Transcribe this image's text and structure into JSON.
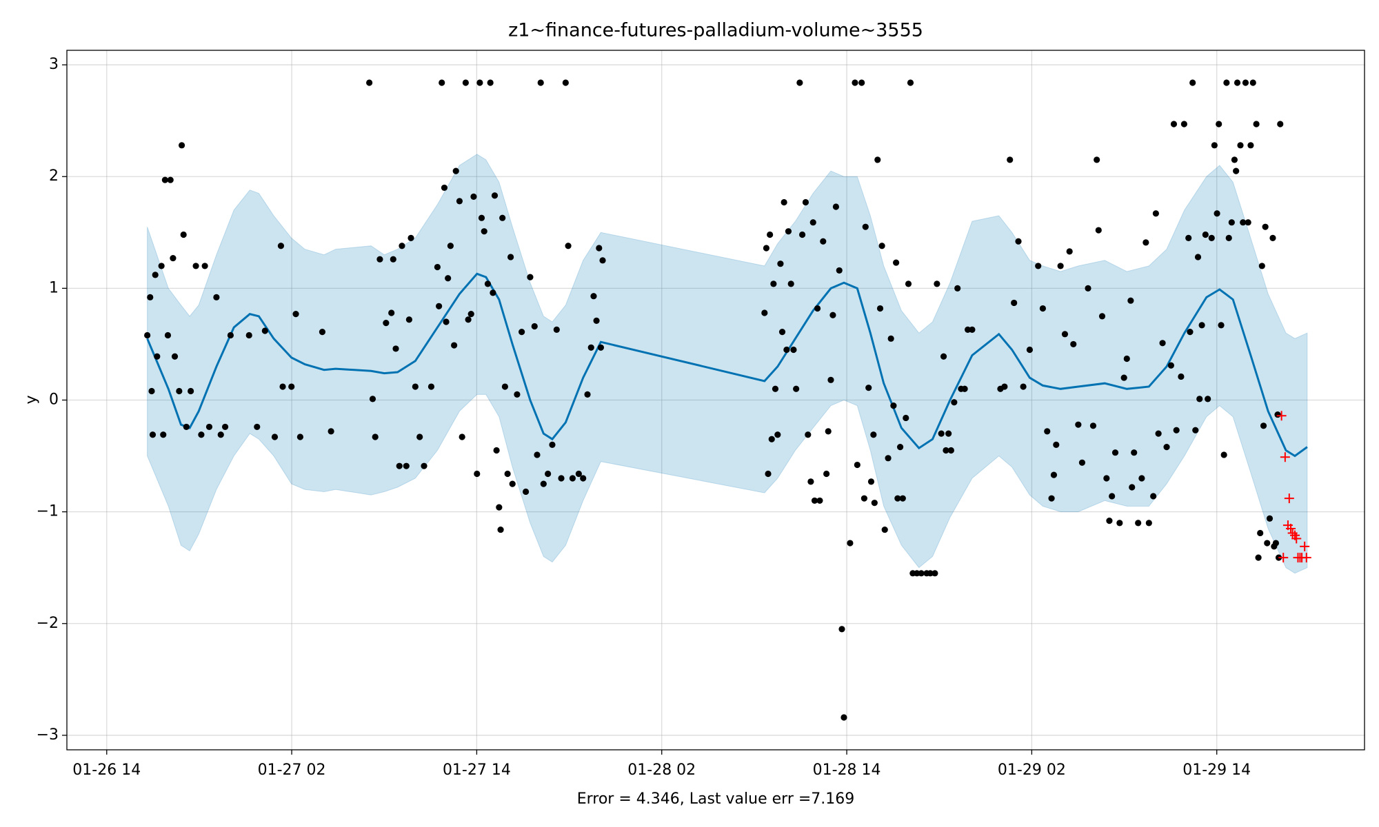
{
  "chart_data": {
    "type": "line",
    "title": "z1~finance-futures-palladium-volume~3555",
    "ylabel": "y",
    "xlabel": "Error = 4.346, Last value err =7.169",
    "grid": true,
    "xlim": [
      "01-26 11:25",
      "01-29 23:35"
    ],
    "xticks": [
      "01-26 14",
      "01-27 02",
      "01-27 14",
      "01-28 02",
      "01-28 14",
      "01-29 02",
      "01-29 14"
    ],
    "ylim": [
      -3.13,
      3.13
    ],
    "yticks": [
      {
        "value": -3,
        "label": "−3"
      },
      {
        "value": -2,
        "label": "−2"
      },
      {
        "value": -1,
        "label": "−1"
      },
      0,
      1,
      2,
      3
    ],
    "series": [
      {
        "type": "forecast",
        "color": "#0072b2",
        "band_color": "#0072b2",
        "x": [
          "01-26 16:38",
          "01-26 18:00",
          "01-26 18:49",
          "01-26 19:23",
          "01-26 19:58",
          "01-26 21:07",
          "01-26 22:15",
          "01-26 23:17",
          "01-26 23:52",
          "01-27 00:50",
          "01-27 01:59",
          "01-27 02:51",
          "01-27 04:06",
          "01-27 04:51",
          "01-27 07:09",
          "01-27 08:00",
          "01-27 08:52",
          "01-27 10:01",
          "01-27 11:27",
          "01-27 12:53",
          "01-27 14:01",
          "01-27 14:36",
          "01-27 15:27",
          "01-27 16:19",
          "01-27 17:28",
          "01-27 18:20",
          "01-27 18:54",
          "01-27 19:46",
          "01-27 20:54",
          "01-27 22:03",
          "01-28 08:40",
          "01-28 09:31",
          "01-28 10:40",
          "01-28 11:49",
          "01-28 12:58",
          "01-28 13:49",
          "01-28 14:41",
          "01-28 15:32",
          "01-28 16:24",
          "01-28 17:33",
          "01-28 18:41",
          "01-28 19:34",
          "01-28 20:42",
          "01-28 22:08",
          "01-28 23:52",
          "01-29 00:43",
          "01-29 01:52",
          "01-29 02:43",
          "01-29 03:52",
          "01-29 05:01",
          "01-29 06:44",
          "01-29 08:10",
          "01-29 09:36",
          "01-29 10:45",
          "01-29 11:54",
          "01-29 13:20",
          "01-29 14:11",
          "01-29 15:03",
          "01-29 16:12",
          "01-29 17:20",
          "01-29 18:29",
          "01-29 19:04",
          "01-29 19:52"
        ],
        "values": [
          0.55,
          0.1,
          -0.22,
          -0.25,
          -0.1,
          0.3,
          0.65,
          0.77,
          0.75,
          0.55,
          0.38,
          0.32,
          0.27,
          0.28,
          0.26,
          0.24,
          0.25,
          0.35,
          0.65,
          0.95,
          1.13,
          1.1,
          0.9,
          0.5,
          0.0,
          -0.3,
          -0.35,
          -0.2,
          0.2,
          0.52,
          0.17,
          0.3,
          0.55,
          0.8,
          1.0,
          1.05,
          1.0,
          0.6,
          0.15,
          -0.25,
          -0.43,
          -0.35,
          0.0,
          0.4,
          0.59,
          0.45,
          0.2,
          0.13,
          0.1,
          0.12,
          0.15,
          0.1,
          0.12,
          0.3,
          0.6,
          0.92,
          0.99,
          0.9,
          0.4,
          -0.1,
          -0.45,
          -0.5,
          -0.42
        ],
        "upper": [
          1.55,
          1.0,
          0.85,
          0.75,
          0.85,
          1.3,
          1.7,
          1.88,
          1.85,
          1.65,
          1.45,
          1.35,
          1.3,
          1.35,
          1.38,
          1.3,
          1.35,
          1.45,
          1.75,
          2.1,
          2.2,
          2.15,
          1.95,
          1.55,
          1.05,
          0.75,
          0.7,
          0.85,
          1.25,
          1.5,
          1.2,
          1.4,
          1.6,
          1.85,
          2.05,
          2.0,
          2.0,
          1.65,
          1.2,
          0.8,
          0.6,
          0.7,
          1.05,
          1.6,
          1.65,
          1.5,
          1.25,
          1.2,
          1.15,
          1.2,
          1.25,
          1.15,
          1.2,
          1.35,
          1.7,
          2.0,
          2.1,
          1.95,
          1.45,
          0.95,
          0.6,
          0.55,
          0.6
        ],
        "lower": [
          -0.5,
          -0.95,
          -1.3,
          -1.35,
          -1.2,
          -0.8,
          -0.5,
          -0.3,
          -0.35,
          -0.5,
          -0.75,
          -0.8,
          -0.82,
          -0.8,
          -0.85,
          -0.82,
          -0.78,
          -0.7,
          -0.45,
          -0.1,
          0.05,
          0.05,
          -0.15,
          -0.6,
          -1.1,
          -1.4,
          -1.45,
          -1.3,
          -0.9,
          -0.55,
          -0.83,
          -0.7,
          -0.45,
          -0.25,
          -0.05,
          0.0,
          -0.05,
          -0.45,
          -0.95,
          -1.3,
          -1.5,
          -1.4,
          -1.05,
          -0.7,
          -0.5,
          -0.6,
          -0.85,
          -0.95,
          -1.0,
          -1.0,
          -0.9,
          -0.95,
          -0.95,
          -0.75,
          -0.5,
          -0.15,
          -0.05,
          -0.15,
          -0.65,
          -1.15,
          -1.5,
          -1.55,
          -1.5
        ]
      },
      {
        "type": "scatter",
        "marker": "o",
        "color": "#000000",
        "x": [
          "01-26 16:38",
          "01-26 16:49",
          "01-26 16:55",
          "01-26 16:59",
          "01-26 17:09",
          "01-26 17:16",
          "01-26 17:33",
          "01-26 17:40",
          "01-26 17:47",
          "01-26 17:58",
          "01-26 18:08",
          "01-26 18:18",
          "01-26 18:25",
          "01-26 18:42",
          "01-26 18:52",
          "01-26 18:59",
          "01-26 19:10",
          "01-26 19:27",
          "01-26 19:47",
          "01-26 20:08",
          "01-26 20:22",
          "01-26 20:39",
          "01-26 21:07",
          "01-26 21:24",
          "01-26 21:41",
          "01-26 22:02",
          "01-26 23:14",
          "01-26 23:45",
          "01-27 00:16",
          "01-27 00:54",
          "01-27 01:18",
          "01-27 01:25",
          "01-27 01:59",
          "01-27 02:16",
          "01-27 02:33",
          "01-27 03:59",
          "01-27 04:33",
          "01-27 07:02",
          "01-27 07:15",
          "01-27 07:25",
          "01-27 07:43",
          "01-27 08:07",
          "01-27 08:28",
          "01-27 08:35",
          "01-27 08:45",
          "01-27 08:59",
          "01-27 09:09",
          "01-27 09:26",
          "01-27 09:37",
          "01-27 09:44",
          "01-27 10:01",
          "01-27 10:18",
          "01-27 10:35",
          "01-27 11:03",
          "01-27 11:27",
          "01-27 11:33",
          "01-27 11:44",
          "01-27 11:54",
          "01-27 12:01",
          "01-27 12:08",
          "01-27 12:18",
          "01-27 12:32",
          "01-27 12:39",
          "01-27 12:53",
          "01-27 13:03",
          "01-27 13:17",
          "01-27 13:27",
          "01-27 13:38",
          "01-27 13:48",
          "01-27 14:01",
          "01-27 14:12",
          "01-27 14:19",
          "01-27 14:29",
          "01-27 14:43",
          "01-27 14:53",
          "01-27 15:03",
          "01-27 15:10",
          "01-27 15:17",
          "01-27 15:27",
          "01-27 15:33",
          "01-27 15:40",
          "01-27 15:50",
          "01-27 16:00",
          "01-27 16:12",
          "01-27 16:19",
          "01-27 16:37",
          "01-27 16:55",
          "01-27 17:11",
          "01-27 17:28",
          "01-27 17:45",
          "01-27 17:55",
          "01-27 18:09",
          "01-27 18:20",
          "01-27 18:37",
          "01-27 18:54",
          "01-27 19:11",
          "01-27 19:29",
          "01-27 19:46",
          "01-27 19:56",
          "01-27 20:13",
          "01-27 20:37",
          "01-27 20:54",
          "01-27 21:11",
          "01-27 21:25",
          "01-27 21:35",
          "01-27 21:46",
          "01-27 21:56",
          "01-27 22:03",
          "01-27 22:10",
          "01-28 08:40",
          "01-28 08:47",
          "01-28 08:54",
          "01-28 09:01",
          "01-28 09:08",
          "01-28 09:15",
          "01-28 09:22",
          "01-28 09:31",
          "01-28 09:42",
          "01-28 09:49",
          "01-28 09:56",
          "01-28 10:06",
          "01-28 10:13",
          "01-28 10:23",
          "01-28 10:33",
          "01-28 10:43",
          "01-28 10:57",
          "01-28 11:07",
          "01-28 11:20",
          "01-28 11:29",
          "01-28 11:40",
          "01-28 11:49",
          "01-28 11:55",
          "01-28 12:06",
          "01-28 12:15",
          "01-28 12:28",
          "01-28 12:41",
          "01-28 12:48",
          "01-28 12:58",
          "01-28 13:06",
          "01-28 13:18",
          "01-28 13:31",
          "01-28 13:41",
          "01-28 13:49",
          "01-28 14:13",
          "01-28 14:32",
          "01-28 14:41",
          "01-28 14:58",
          "01-28 15:08",
          "01-28 15:13",
          "01-28 15:25",
          "01-28 15:35",
          "01-28 15:44",
          "01-28 15:48",
          "01-28 16:00",
          "01-28 16:10",
          "01-28 16:17",
          "01-28 16:28",
          "01-28 16:41",
          "01-28 16:52",
          "01-28 17:02",
          "01-28 17:12",
          "01-28 17:18",
          "01-28 17:28",
          "01-28 17:38",
          "01-28 17:50",
          "01-28 18:00",
          "01-28 18:08",
          "01-28 18:17",
          "01-28 18:33",
          "01-28 18:50",
          "01-28 19:11",
          "01-28 19:25",
          "01-28 19:43",
          "01-28 19:51",
          "01-28 20:08",
          "01-28 20:17",
          "01-28 20:26",
          "01-28 20:36",
          "01-28 20:46",
          "01-28 20:58",
          "01-28 21:11",
          "01-28 21:25",
          "01-28 21:39",
          "01-28 21:51",
          "01-28 22:08",
          "01-28 23:58",
          "01-29 00:14",
          "01-29 00:35",
          "01-29 00:51",
          "01-29 01:08",
          "01-29 01:27",
          "01-29 01:52",
          "01-29 02:25",
          "01-29 02:43",
          "01-29 03:00",
          "01-29 03:17",
          "01-29 03:26",
          "01-29 03:35",
          "01-29 03:52",
          "01-29 04:09",
          "01-29 04:27",
          "01-29 04:42",
          "01-29 05:01",
          "01-29 05:16",
          "01-29 05:39",
          "01-29 05:59",
          "01-29 06:13",
          "01-29 06:20",
          "01-29 06:34",
          "01-29 06:51",
          "01-29 07:02",
          "01-29 07:12",
          "01-29 07:25",
          "01-29 07:42",
          "01-29 07:59",
          "01-29 08:10",
          "01-29 08:25",
          "01-29 08:30",
          "01-29 08:38",
          "01-29 08:54",
          "01-29 09:08",
          "01-29 09:24",
          "01-29 09:36",
          "01-29 09:53",
          "01-29 10:03",
          "01-29 10:13",
          "01-29 10:29",
          "01-29 10:45",
          "01-29 11:02",
          "01-29 11:13",
          "01-29 11:23",
          "01-29 11:41",
          "01-29 11:53",
          "01-29 12:10",
          "01-29 12:16",
          "01-29 12:26",
          "01-29 12:37",
          "01-29 12:47",
          "01-29 12:53",
          "01-29 13:02",
          "01-29 13:16",
          "01-29 13:25",
          "01-29 13:40",
          "01-29 13:51",
          "01-29 14:01",
          "01-29 14:08",
          "01-29 14:17",
          "01-29 14:28",
          "01-29 14:38",
          "01-29 14:47",
          "01-29 14:58",
          "01-29 15:09",
          "01-29 15:15",
          "01-29 15:20",
          "01-29 15:32",
          "01-29 15:42",
          "01-29 15:52",
          "01-29 16:02",
          "01-29 16:12",
          "01-29 16:21",
          "01-29 16:34",
          "01-29 16:42",
          "01-29 16:49",
          "01-29 16:56",
          "01-29 17:02",
          "01-29 17:09",
          "01-29 17:16",
          "01-29 17:26",
          "01-29 17:38",
          "01-29 17:43",
          "01-29 17:50",
          "01-29 17:57",
          "01-29 18:01",
          "01-29 18:07"
        ],
        "values": [
          0.58,
          0.92,
          0.08,
          -0.31,
          1.12,
          0.39,
          1.2,
          -0.31,
          1.97,
          0.58,
          1.97,
          1.27,
          0.39,
          0.08,
          2.28,
          1.48,
          -0.24,
          0.08,
          1.2,
          -0.31,
          1.2,
          -0.24,
          0.92,
          -0.31,
          -0.24,
          0.58,
          0.58,
          -0.24,
          0.62,
          -0.33,
          1.38,
          0.12,
          0.12,
          0.77,
          -0.33,
          0.61,
          -0.28,
          2.84,
          0.01,
          -0.33,
          1.26,
          0.69,
          0.78,
          1.26,
          0.46,
          -0.59,
          1.38,
          -0.59,
          0.72,
          1.45,
          0.12,
          -0.33,
          -0.59,
          0.12,
          1.19,
          0.84,
          2.84,
          1.9,
          0.7,
          1.09,
          1.38,
          0.49,
          2.05,
          1.78,
          -0.33,
          2.84,
          0.72,
          0.77,
          1.82,
          -0.66,
          2.84,
          1.63,
          1.51,
          1.04,
          2.84,
          0.96,
          1.83,
          -0.45,
          -0.96,
          -1.16,
          1.63,
          0.12,
          -0.66,
          1.28,
          -0.75,
          0.05,
          0.61,
          -0.82,
          1.1,
          0.66,
          -0.49,
          2.84,
          -0.75,
          -0.66,
          -0.4,
          0.63,
          -0.7,
          2.84,
          1.38,
          -0.7,
          -0.66,
          -0.7,
          0.05,
          0.47,
          0.93,
          0.71,
          1.36,
          0.47,
          1.25,
          0.78,
          1.36,
          -0.66,
          1.48,
          -0.35,
          1.04,
          0.1,
          -0.31,
          1.22,
          0.61,
          1.77,
          0.45,
          1.51,
          1.04,
          0.45,
          0.1,
          2.84,
          1.48,
          1.77,
          -0.31,
          -0.73,
          1.59,
          -0.9,
          0.82,
          -0.9,
          1.42,
          -0.66,
          -0.28,
          0.18,
          0.76,
          1.73,
          1.16,
          -2.05,
          -2.84,
          -1.28,
          2.84,
          -0.58,
          2.84,
          -0.88,
          1.55,
          0.11,
          -0.73,
          -0.31,
          -0.92,
          2.15,
          0.82,
          1.38,
          -1.16,
          -0.52,
          0.55,
          -0.05,
          1.23,
          -0.88,
          -0.42,
          -0.88,
          -0.16,
          1.04,
          2.84,
          -1.55,
          -1.55,
          -1.55,
          -1.55,
          -1.55,
          -1.55,
          1.04,
          -0.3,
          0.39,
          -0.45,
          -0.3,
          -0.45,
          -0.02,
          1.0,
          0.1,
          0.1,
          0.63,
          0.63,
          0.1,
          0.12,
          2.15,
          0.87,
          1.42,
          0.12,
          0.45,
          1.2,
          0.82,
          -0.28,
          -0.88,
          -0.67,
          -0.4,
          1.2,
          0.59,
          1.33,
          0.5,
          -0.22,
          -0.56,
          1.0,
          -0.23,
          2.15,
          1.52,
          0.75,
          -0.7,
          -1.08,
          -0.86,
          -0.47,
          -1.1,
          0.2,
          0.37,
          0.89,
          -0.78,
          -0.47,
          -1.1,
          -0.7,
          1.41,
          -1.1,
          -0.86,
          1.67,
          -0.3,
          0.51,
          -0.42,
          0.31,
          2.47,
          -0.27,
          0.21,
          2.47,
          1.45,
          0.61,
          2.84,
          -0.27,
          1.28,
          0.01,
          0.67,
          1.48,
          0.01,
          1.45,
          2.28,
          1.67,
          2.47,
          0.67,
          -0.49,
          2.84,
          1.45,
          1.59,
          2.15,
          2.05,
          2.84,
          2.28,
          1.59,
          2.84,
          1.59,
          2.28,
          2.84,
          2.47,
          -1.41,
          -1.19,
          1.2,
          -0.23,
          1.55,
          -1.28,
          -1.06,
          1.45,
          -1.31,
          -1.28,
          -0.13,
          -1.41,
          2.47
        ]
      },
      {
        "type": "scatter",
        "marker": "+",
        "color": "#ff0000",
        "x": [
          "01-29 18:12",
          "01-29 18:19",
          "01-29 18:26",
          "01-29 18:37",
          "01-29 18:42",
          "01-29 18:48",
          "01-29 18:55",
          "01-29 19:04",
          "01-29 19:10",
          "01-29 19:16",
          "01-29 19:24",
          "01-29 19:31",
          "01-29 19:42",
          "01-29 19:49"
        ],
        "values": [
          -0.14,
          -1.41,
          -0.51,
          -1.12,
          -0.88,
          -1.15,
          -1.19,
          -1.21,
          -1.24,
          -1.41,
          -1.41,
          -1.41,
          -1.31,
          -1.41
        ]
      }
    ]
  }
}
